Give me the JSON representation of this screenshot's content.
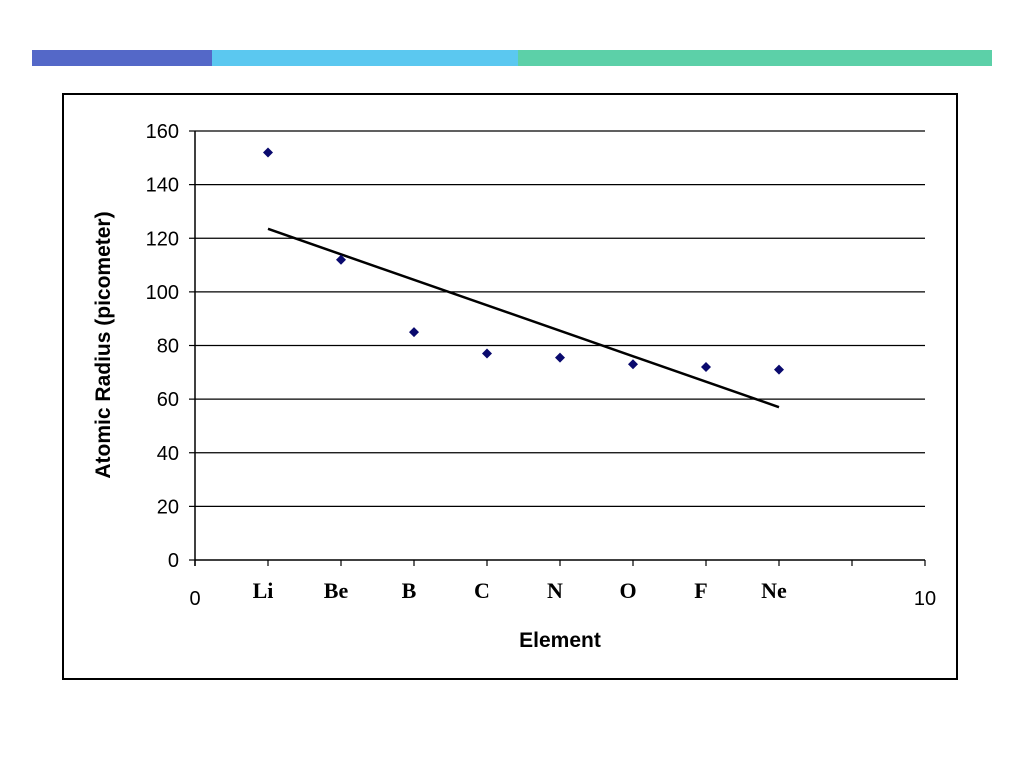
{
  "accent_bars": [
    {
      "name": "accent-bar-blue",
      "color": "#5468c8"
    },
    {
      "name": "accent-bar-sky",
      "color": "#5bc8f0"
    },
    {
      "name": "accent-bar-teal",
      "color": "#5cd0a8"
    }
  ],
  "chart_data": {
    "type": "scatter",
    "title": "",
    "xlabel": "Element",
    "ylabel": "Atomic Radius (picometer)",
    "xlim": [
      0,
      10
    ],
    "ylim": [
      0,
      160
    ],
    "y_ticks": [
      0,
      20,
      40,
      60,
      80,
      100,
      120,
      140,
      160
    ],
    "x_tick_labels": [
      {
        "value": 0,
        "label": "0"
      },
      {
        "value": 10,
        "label": "10"
      }
    ],
    "grid": "horizontal",
    "marker": "diamond",
    "marker_color": "#0a0a6e",
    "points": [
      {
        "x": 1,
        "y": 152,
        "label": "Li"
      },
      {
        "x": 2,
        "y": 112,
        "label": "Be"
      },
      {
        "x": 3,
        "y": 85,
        "label": "B"
      },
      {
        "x": 4,
        "y": 77,
        "label": "C"
      },
      {
        "x": 5,
        "y": 75.5,
        "label": "N"
      },
      {
        "x": 6,
        "y": 73,
        "label": "O"
      },
      {
        "x": 7,
        "y": 72,
        "label": "F"
      },
      {
        "x": 8,
        "y": 71,
        "label": "Ne"
      }
    ],
    "trendline": {
      "type": "linear",
      "x_start": 1,
      "y_start": 123.5,
      "x_end": 8,
      "y_end": 57
    }
  }
}
